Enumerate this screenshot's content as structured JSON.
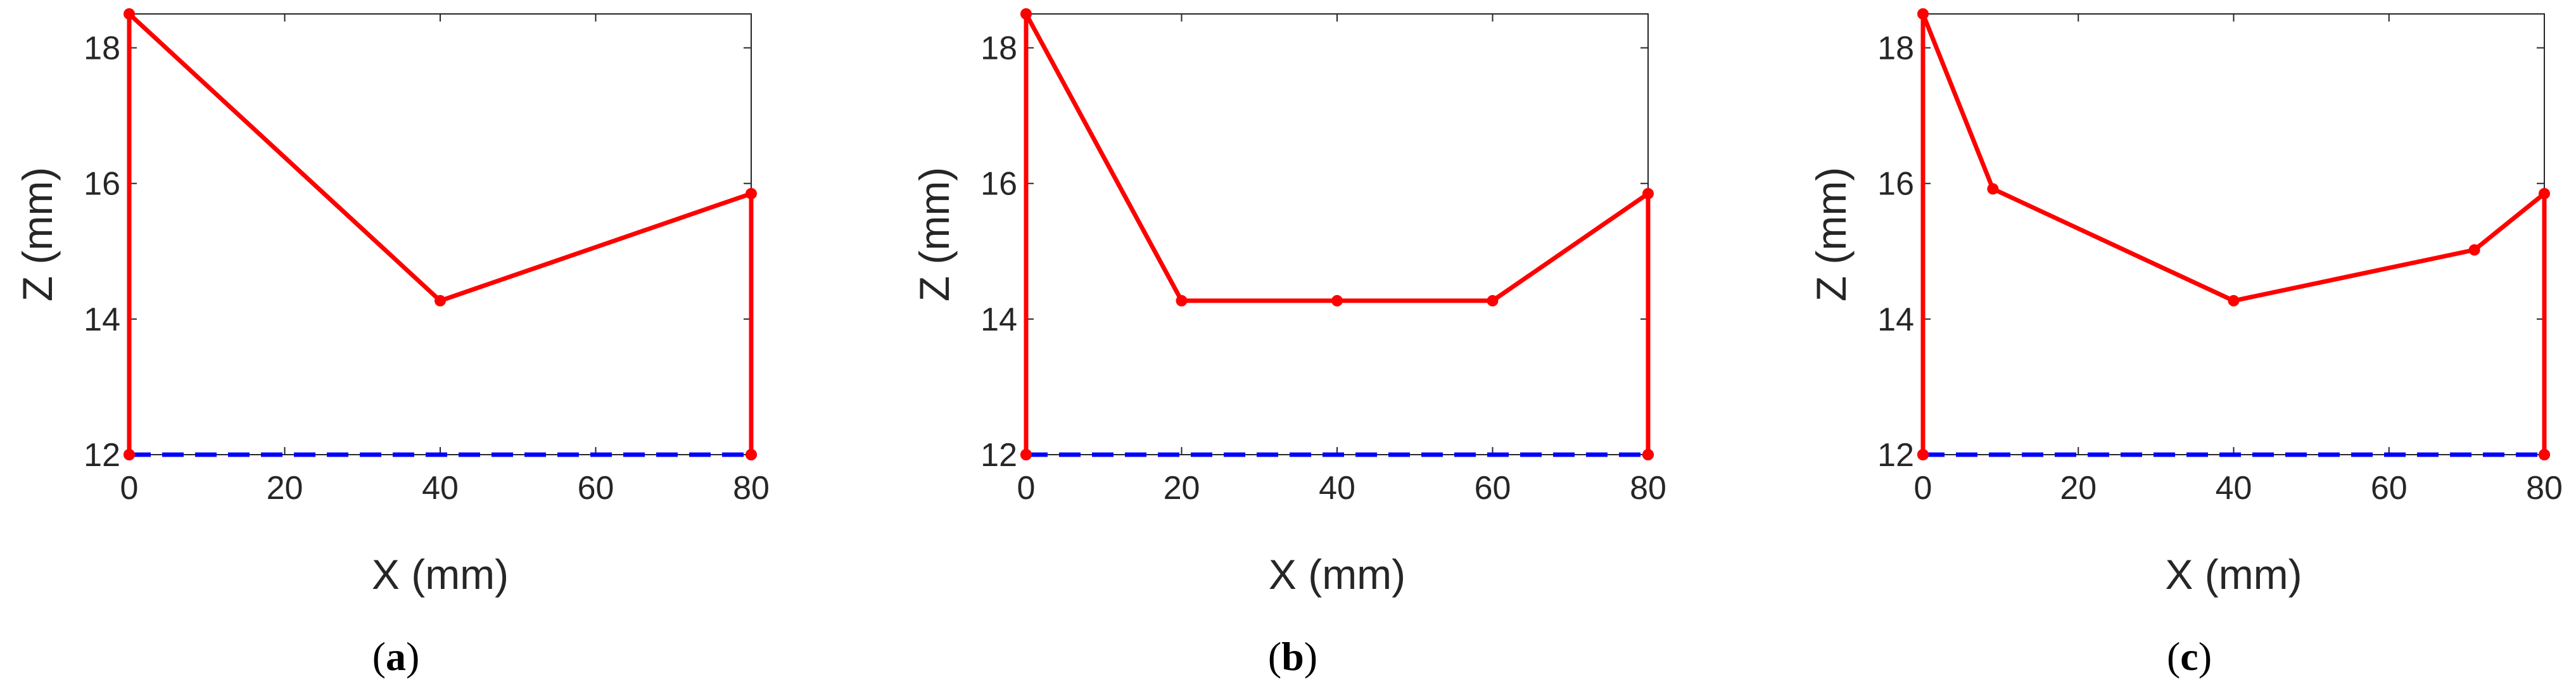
{
  "chart_data": [
    {
      "type": "line",
      "caption": {
        "open": "(",
        "letter": "a",
        "close": ")"
      },
      "xlabel": "X (mm)",
      "ylabel": "Z (mm)",
      "xlim": [
        0,
        80
      ],
      "ylim": [
        12,
        18.5
      ],
      "xticks": [
        0,
        20,
        40,
        60,
        80
      ],
      "yticks": [
        12,
        14,
        16,
        18
      ],
      "grid": false,
      "series": [
        {
          "color": "#ff0000",
          "style": "solid",
          "markers": true,
          "points": [
            [
              0,
              12
            ],
            [
              0,
              18.5
            ],
            [
              40,
              14.27
            ],
            [
              80,
              15.85
            ],
            [
              80,
              12
            ]
          ]
        },
        {
          "color": "#0000ff",
          "style": "dashed",
          "markers": true,
          "points": [
            [
              0,
              12
            ],
            [
              80,
              12
            ]
          ]
        }
      ]
    },
    {
      "type": "line",
      "caption": {
        "open": "(",
        "letter": "b",
        "close": ")"
      },
      "xlabel": "X (mm)",
      "ylabel": "Z (mm)",
      "xlim": [
        0,
        80
      ],
      "ylim": [
        12,
        18.5
      ],
      "xticks": [
        0,
        20,
        40,
        60,
        80
      ],
      "yticks": [
        12,
        14,
        16,
        18
      ],
      "grid": false,
      "series": [
        {
          "color": "#ff0000",
          "style": "solid",
          "markers": true,
          "points": [
            [
              0,
              12
            ],
            [
              0,
              18.5
            ],
            [
              20,
              14.27
            ],
            [
              40,
              14.27
            ],
            [
              60,
              14.27
            ],
            [
              80,
              15.85
            ],
            [
              80,
              12
            ]
          ]
        },
        {
          "color": "#0000ff",
          "style": "dashed",
          "markers": true,
          "points": [
            [
              0,
              12
            ],
            [
              80,
              12
            ]
          ]
        }
      ]
    },
    {
      "type": "line",
      "caption": {
        "open": "(",
        "letter": "c",
        "close": ")"
      },
      "xlabel": "X (mm)",
      "ylabel": "Z (mm)",
      "xlim": [
        0,
        80
      ],
      "ylim": [
        12,
        18.5
      ],
      "xticks": [
        0,
        20,
        40,
        60,
        80
      ],
      "yticks": [
        12,
        14,
        16,
        18
      ],
      "grid": false,
      "series": [
        {
          "color": "#ff0000",
          "style": "solid",
          "markers": true,
          "points": [
            [
              0,
              12
            ],
            [
              0,
              18.5
            ],
            [
              9,
              15.92
            ],
            [
              40,
              14.27
            ],
            [
              71,
              15.02
            ],
            [
              80,
              15.85
            ],
            [
              80,
              12
            ]
          ]
        },
        {
          "color": "#0000ff",
          "style": "dashed",
          "markers": true,
          "points": [
            [
              0,
              12
            ],
            [
              80,
              12
            ]
          ]
        }
      ]
    }
  ]
}
